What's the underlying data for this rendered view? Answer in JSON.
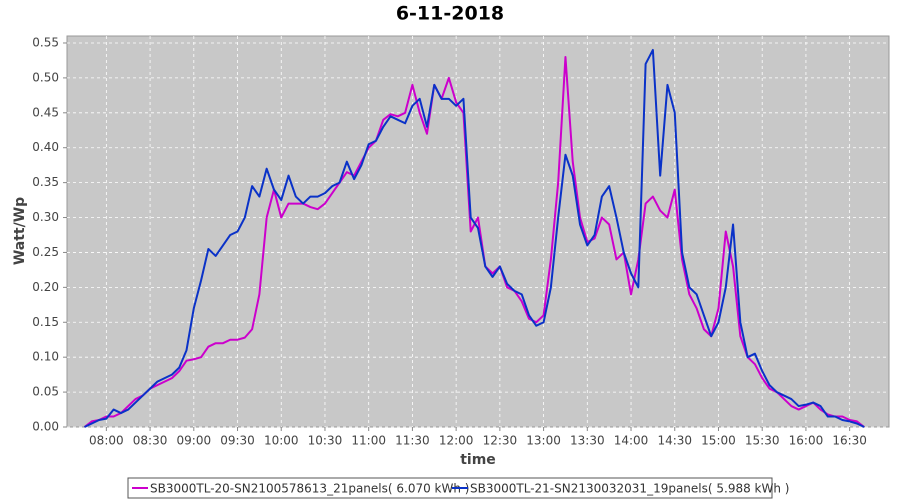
{
  "chart_data": {
    "type": "line",
    "title": "6-11-2018",
    "x_label": "time",
    "y_label": "Watt/Wp",
    "x": [
      "07:45",
      "07:50",
      "07:55",
      "08:00",
      "08:05",
      "08:10",
      "08:15",
      "08:20",
      "08:25",
      "08:30",
      "08:35",
      "08:40",
      "08:45",
      "08:50",
      "08:55",
      "09:00",
      "09:05",
      "09:10",
      "09:15",
      "09:20",
      "09:25",
      "09:30",
      "09:35",
      "09:40",
      "09:45",
      "09:50",
      "09:55",
      "10:00",
      "10:05",
      "10:10",
      "10:15",
      "10:20",
      "10:25",
      "10:30",
      "10:35",
      "10:40",
      "10:45",
      "10:50",
      "10:55",
      "11:00",
      "11:05",
      "11:10",
      "11:15",
      "11:20",
      "11:25",
      "11:30",
      "11:35",
      "11:40",
      "11:45",
      "11:50",
      "11:55",
      "12:00",
      "12:05",
      "12:10",
      "12:15",
      "12:20",
      "12:25",
      "12:30",
      "12:35",
      "12:40",
      "12:45",
      "12:50",
      "12:55",
      "13:00",
      "13:05",
      "13:10",
      "13:15",
      "13:20",
      "13:25",
      "13:30",
      "13:35",
      "13:40",
      "13:45",
      "13:50",
      "13:55",
      "14:00",
      "14:05",
      "14:10",
      "14:15",
      "14:20",
      "14:25",
      "14:30",
      "14:35",
      "14:40",
      "14:45",
      "14:50",
      "14:55",
      "15:00",
      "15:05",
      "15:10",
      "15:15",
      "15:20",
      "15:25",
      "15:30",
      "15:35",
      "15:40",
      "15:45",
      "15:50",
      "15:55",
      "16:00",
      "16:05",
      "16:10",
      "16:15",
      "16:20",
      "16:25",
      "16:30",
      "16:35",
      "16:40"
    ],
    "series": [
      {
        "name": "SB3000TL-20-SN2100578613_21panels( 6.070 kWh )",
        "color": "#cc00cc",
        "values": [
          0,
          0.008,
          0.01,
          0.015,
          0.015,
          0.02,
          0.03,
          0.04,
          0.045,
          0.055,
          0.06,
          0.065,
          0.07,
          0.08,
          0.095,
          0.097,
          0.1,
          0.115,
          0.12,
          0.12,
          0.125,
          0.125,
          0.128,
          0.14,
          0.19,
          0.3,
          0.34,
          0.3,
          0.32,
          0.32,
          0.32,
          0.315,
          0.312,
          0.32,
          0.335,
          0.35,
          0.365,
          0.36,
          0.38,
          0.4,
          0.41,
          0.44,
          0.448,
          0.445,
          0.45,
          0.49,
          0.45,
          0.42,
          0.49,
          0.47,
          0.5,
          0.465,
          0.45,
          0.28,
          0.3,
          0.23,
          0.22,
          0.23,
          0.2,
          0.195,
          0.18,
          0.155,
          0.15,
          0.16,
          0.24,
          0.35,
          0.53,
          0.38,
          0.3,
          0.265,
          0.27,
          0.3,
          0.29,
          0.24,
          0.25,
          0.19,
          0.24,
          0.32,
          0.33,
          0.31,
          0.3,
          0.34,
          0.24,
          0.19,
          0.17,
          0.14,
          0.13,
          0.17,
          0.28,
          0.23,
          0.13,
          0.1,
          0.09,
          0.07,
          0.055,
          0.05,
          0.04,
          0.03,
          0.025,
          0.03,
          0.035,
          0.025,
          0.018,
          0.015,
          0.015,
          0.01,
          0.008,
          0
        ]
      },
      {
        "name": "SB3000TL-21-SN2130032031_19panels( 5.988 kWh )",
        "color": "#0a32c8",
        "values": [
          0,
          0.005,
          0.01,
          0.012,
          0.025,
          0.02,
          0.025,
          0.035,
          0.045,
          0.055,
          0.065,
          0.07,
          0.075,
          0.085,
          0.11,
          0.17,
          0.21,
          0.255,
          0.245,
          0.26,
          0.275,
          0.28,
          0.3,
          0.345,
          0.33,
          0.37,
          0.34,
          0.325,
          0.36,
          0.33,
          0.32,
          0.33,
          0.33,
          0.335,
          0.345,
          0.35,
          0.38,
          0.355,
          0.375,
          0.405,
          0.41,
          0.43,
          0.445,
          0.44,
          0.435,
          0.46,
          0.47,
          0.43,
          0.49,
          0.47,
          0.47,
          0.46,
          0.47,
          0.3,
          0.285,
          0.23,
          0.215,
          0.23,
          0.205,
          0.195,
          0.19,
          0.16,
          0.145,
          0.15,
          0.2,
          0.3,
          0.39,
          0.36,
          0.29,
          0.26,
          0.275,
          0.33,
          0.345,
          0.3,
          0.25,
          0.22,
          0.2,
          0.52,
          0.54,
          0.36,
          0.49,
          0.45,
          0.25,
          0.2,
          0.19,
          0.16,
          0.13,
          0.15,
          0.2,
          0.29,
          0.15,
          0.1,
          0.105,
          0.08,
          0.06,
          0.05,
          0.045,
          0.04,
          0.03,
          0.032,
          0.035,
          0.03,
          0.015,
          0.015,
          0.01,
          0.008,
          0.005,
          0
        ]
      }
    ],
    "xlim": [
      "07:33",
      "16:57"
    ],
    "xticks": [
      "08:00",
      "08:30",
      "09:00",
      "09:30",
      "10:00",
      "10:30",
      "11:00",
      "11:30",
      "12:00",
      "12:30",
      "13:00",
      "13:30",
      "14:00",
      "14:30",
      "15:00",
      "15:30",
      "16:00",
      "16:30"
    ],
    "ylim": [
      0,
      0.56
    ],
    "yticks": [
      {
        "value": 0,
        "label": "0.00"
      },
      {
        "value": 0.05,
        "label": "0.05"
      },
      {
        "value": 0.1,
        "label": "0.10"
      },
      {
        "value": 0.15,
        "label": "0.15"
      },
      {
        "value": 0.2,
        "label": "0.20"
      },
      {
        "value": 0.25,
        "label": "0.25"
      },
      {
        "value": 0.3,
        "label": "0.30"
      },
      {
        "value": 0.35,
        "label": "0.35"
      },
      {
        "value": 0.4,
        "label": "0.40"
      },
      {
        "value": 0.45,
        "label": "0.45"
      },
      {
        "value": 0.5,
        "label": "0.50"
      },
      {
        "value": 0.55,
        "label": "0.55"
      }
    ],
    "grid": true,
    "legend": "bottom"
  }
}
